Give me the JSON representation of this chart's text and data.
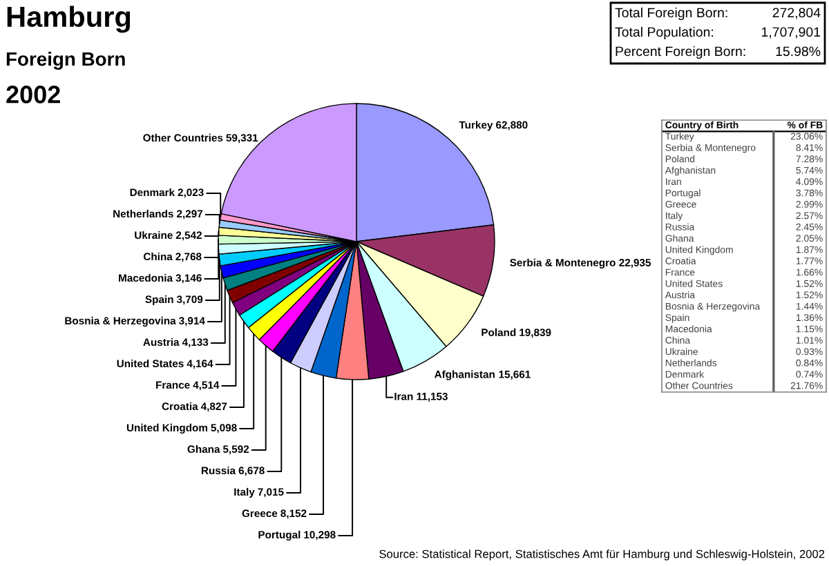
{
  "chart_data": [
    {
      "type": "pie",
      "title": "Hamburg",
      "subtitle": "Foreign Born",
      "categories": [
        "Turkey",
        "Serbia & Montenegro",
        "Poland",
        "Afghanistan",
        "Iran",
        "Portugal",
        "Greece",
        "Italy",
        "Russia",
        "Ghana",
        "United Kingdom",
        "Croatia",
        "France",
        "United States",
        "Austria",
        "Bosnia & Herzegovina",
        "Spain",
        "Macedonia",
        "China",
        "Ukraine",
        "Netherlands",
        "Denmark",
        "Other Countries"
      ],
      "values": [
        62880,
        22935,
        19839,
        15661,
        11153,
        10298,
        8152,
        7015,
        6678,
        5592,
        5098,
        4827,
        4514,
        4164,
        4133,
        3914,
        3709,
        3146,
        2768,
        2542,
        2297,
        2023,
        59331
      ],
      "colors": [
        "#9999ff",
        "#993366",
        "#ffffcc",
        "#ccffff",
        "#660066",
        "#ff8080",
        "#0066cc",
        "#ccccff",
        "#000080",
        "#ff00ff",
        "#ffff00",
        "#00ffff",
        "#800080",
        "#800000",
        "#008080",
        "#0000ff",
        "#00ccff",
        "#ccffff",
        "#ccffcc",
        "#ffff99",
        "#99ccff",
        "#ff99cc",
        "#cc99ff"
      ],
      "annotations": [
        "2002",
        "Total Foreign Born: 272,804",
        "Total Population: 1,707,901",
        "Percent Foreign Born: 15.98%",
        "Source: Statistical Report, Statistisches Amt für Hamburg und Schleswig-Holstein, 2002"
      ],
      "value_labels": [
        "62,880",
        "22,935",
        "19,839",
        "15,661",
        "11,153",
        "10,298",
        "8,152",
        "7,015",
        "6,678",
        "5,592",
        "5,098",
        "4,827",
        "4,514",
        "4,164",
        "4,133",
        "3,914",
        "3,709",
        "3,146",
        "2,768",
        "2,542",
        "2,297",
        "2,023",
        "59,331"
      ]
    },
    {
      "type": "other",
      "xlabel": "Country of Birth",
      "ylabel": "% of FB",
      "categories": [
        "Turkey",
        "Serbia & Montenegro",
        "Poland",
        "Afghanistan",
        "Iran",
        "Portugal",
        "Greece",
        "Italy",
        "Russia",
        "Ghana",
        "United Kingdom",
        "Croatia",
        "France",
        "United States",
        "Austria",
        "Bosnia & Herzegovina",
        "Spain",
        "Macedonia",
        "China",
        "Ukraine",
        "Netherlands",
        "Denmark",
        "Other Countries"
      ],
      "value_labels": [
        "23.06%",
        "8.41%",
        "7.28%",
        "5.74%",
        "4.09%",
        "3.78%",
        "2.99%",
        "2.57%",
        "2.45%",
        "2.05%",
        "1.87%",
        "1.77%",
        "1.66%",
        "1.52%",
        "1.52%",
        "1.44%",
        "1.36%",
        "1.15%",
        "1.01%",
        "0.93%",
        "0.84%",
        "0.74%",
        "21.76%"
      ]
    }
  ]
}
